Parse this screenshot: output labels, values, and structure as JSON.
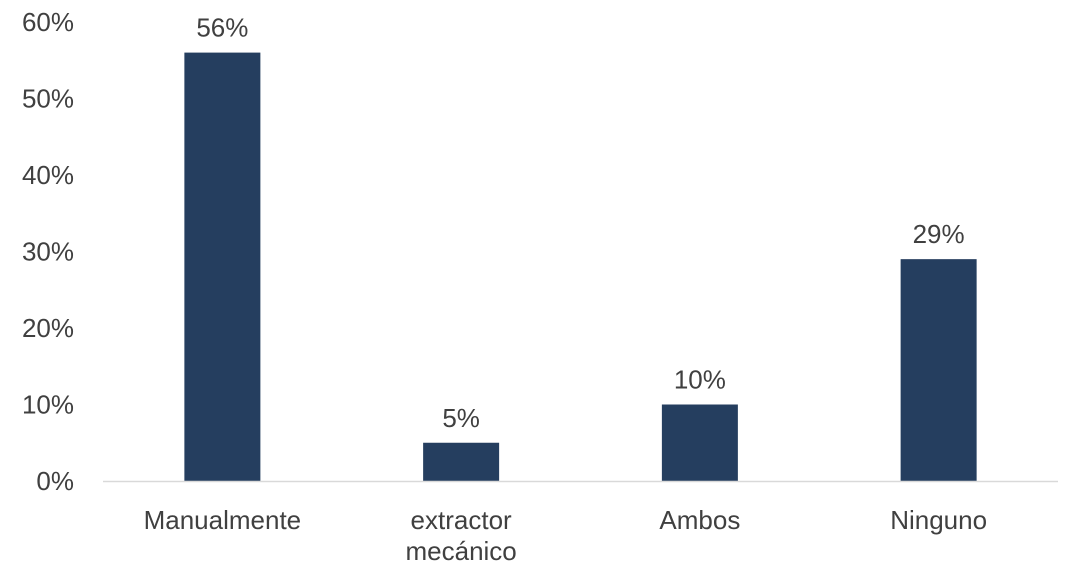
{
  "chart_data": {
    "type": "bar",
    "categories": [
      "Manualmente",
      "extractor mecánico",
      "Ambos",
      "Ninguno"
    ],
    "values": [
      56,
      5,
      10,
      29
    ],
    "data_labels": [
      "56%",
      "5%",
      "10%",
      "29%"
    ],
    "y_ticks": [
      0,
      10,
      20,
      30,
      40,
      50,
      60
    ],
    "y_tick_labels": [
      "0%",
      "10%",
      "20%",
      "30%",
      "40%",
      "50%",
      "60%"
    ],
    "ylim": [
      0,
      60
    ],
    "grid": false,
    "legend": "none",
    "bar_color": "#253E5F",
    "axis_color": "#D9D9D9",
    "text_color": "#404040"
  }
}
